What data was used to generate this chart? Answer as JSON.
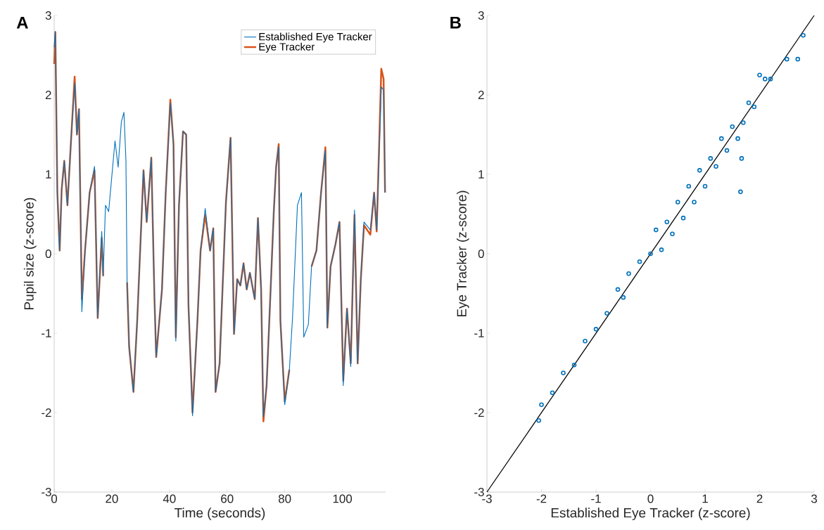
{
  "chart_data": [
    {
      "type": "line",
      "xlabel": "Time (seconds)",
      "ylabel": "Pupil size (z-score)",
      "annotations": [
        "A"
      ],
      "legend": "top right",
      "xlim": [
        0,
        115
      ],
      "ylim": [
        -3,
        3
      ],
      "xticks": [
        0,
        20,
        40,
        60,
        80,
        100
      ],
      "yticks": [
        -3,
        -2,
        -1,
        0,
        1,
        2,
        3
      ],
      "x": [
        0,
        0.4,
        1.1,
        1.9,
        2.6,
        3.5,
        4.6,
        5.9,
        7.1,
        7.9,
        8.6,
        9.6,
        10.7,
        12.3,
        14.0,
        15.1,
        16.5,
        17.0,
        17.8,
        18.9,
        21.1,
        22.2,
        23.3,
        24.2,
        24.9,
        25.3,
        26.0,
        27.5,
        28.8,
        31.0,
        32.1,
        33.7,
        34.8,
        35.4,
        37.4,
        38.7,
        40.3,
        41.4,
        42.2,
        43.3,
        44.7,
        45.8,
        46.6,
        48.0,
        49.7,
        50.8,
        52.4,
        54.1,
        55.2,
        56.0,
        57.4,
        59.6,
        61.2,
        62.4,
        63.5,
        64.6,
        65.7,
        66.8,
        67.9,
        69.6,
        70.7,
        71.8,
        72.6,
        73.7,
        75.1,
        76.2,
        77.0,
        77.9,
        78.5,
        80.0,
        81.6,
        82.7,
        84.4,
        85.8,
        86.6,
        88.2,
        89.3,
        91.0,
        92.6,
        94.1,
        94.8,
        95.9,
        97.6,
        99.0,
        100.3,
        101.6,
        102.9,
        104.2,
        105.3,
        106.4,
        107.5,
        109.7,
        111.0,
        111.9,
        113.5,
        114.3,
        114.8
      ],
      "series": [
        {
          "name": "Established Eye Tracker",
          "color": "#0072bd",
          "values": [
            2.6,
            2.8,
            0.77,
            0.04,
            0.81,
            1.17,
            0.61,
            1.46,
            2.15,
            1.5,
            1.82,
            -0.73,
            0.04,
            0.77,
            1.1,
            -0.81,
            0.28,
            -0.28,
            0.61,
            0.53,
            1.42,
            1.09,
            1.66,
            1.78,
            1.17,
            -0.36,
            -1.17,
            -1.74,
            -0.85,
            1.05,
            0.4,
            1.21,
            -0.57,
            -1.3,
            -0.45,
            0.77,
            1.9,
            1.38,
            -1.1,
            0.61,
            1.54,
            1.5,
            -0.65,
            -2.04,
            -0.85,
            0.04,
            0.57,
            0.04,
            0.32,
            -1.74,
            -1.38,
            0.65,
            1.46,
            -1.01,
            -0.32,
            -0.4,
            -0.12,
            -0.45,
            -0.24,
            -0.57,
            0.45,
            -0.45,
            -2.05,
            -1.66,
            -0.45,
            0.53,
            1.09,
            1.35,
            -0.85,
            -1.9,
            -1.46,
            -0.81,
            0.61,
            0.77,
            -1.05,
            -0.89,
            -0.16,
            0.04,
            0.77,
            1.3,
            -0.93,
            -0.16,
            0.12,
            0.4,
            -1.66,
            -0.69,
            -1.42,
            0.55,
            -1.38,
            -0.32,
            0.4,
            0.3,
            0.77,
            0.3,
            2.1,
            2.06,
            0.77
          ]
        },
        {
          "name": "Eye Tracker",
          "color": "#d95319",
          "values": [
            2.39,
            2.79,
            0.77,
            0.04,
            0.81,
            1.17,
            0.61,
            1.46,
            2.23,
            1.5,
            1.82,
            -0.57,
            0.04,
            0.77,
            1.05,
            -0.81,
            0.2,
            -0.28,
            null,
            null,
            null,
            null,
            null,
            null,
            null,
            -0.36,
            -1.17,
            -1.74,
            -0.85,
            1.05,
            0.4,
            1.21,
            -0.57,
            -1.3,
            -0.45,
            0.77,
            1.94,
            1.38,
            -1.05,
            0.61,
            1.54,
            1.5,
            -0.65,
            -2.0,
            -0.85,
            0.04,
            0.49,
            0.04,
            0.32,
            -1.74,
            -1.38,
            0.65,
            1.46,
            -1.01,
            -0.32,
            -0.4,
            -0.12,
            -0.45,
            -0.24,
            -0.57,
            0.45,
            -0.45,
            -2.11,
            -1.66,
            -0.45,
            0.53,
            1.09,
            1.38,
            -0.85,
            -1.86,
            -1.46,
            null,
            null,
            null,
            null,
            null,
            -0.16,
            0.04,
            0.77,
            1.34,
            -0.93,
            -0.16,
            0.12,
            0.4,
            -1.6,
            -0.69,
            -1.38,
            0.49,
            -1.38,
            -0.32,
            0.36,
            0.24,
            0.77,
            0.28,
            2.33,
            2.2,
            0.77
          ]
        }
      ]
    },
    {
      "type": "scatter",
      "xlabel": "Established Eye Tracker (z-score)",
      "ylabel": "Eye Tracker (z-score)",
      "annotations": [
        "B"
      ],
      "xlim": [
        -3,
        3
      ],
      "ylim": [
        -3,
        3
      ],
      "xticks": [
        -3,
        -2,
        -1,
        0,
        1,
        2,
        3
      ],
      "yticks": [
        -3,
        -2,
        -1,
        0,
        1,
        2,
        3
      ],
      "series": [
        {
          "color": "#0072bd",
          "marker": "circle",
          "x": [
            -2.05,
            -2.0,
            -1.8,
            -1.6,
            -1.4,
            -1.2,
            -1.0,
            -0.8,
            -0.6,
            -0.5,
            -0.4,
            -0.2,
            0,
            0.1,
            0.2,
            0.3,
            0.4,
            0.5,
            0.6,
            0.7,
            0.8,
            0.9,
            1.0,
            1.1,
            1.2,
            1.3,
            1.4,
            1.5,
            1.6,
            1.65,
            1.67,
            1.7,
            1.8,
            1.9,
            2.0,
            2.1,
            2.2,
            2.5,
            2.7,
            2.8
          ],
          "values": [
            -2.1,
            -1.9,
            -1.75,
            -1.5,
            -1.4,
            -1.1,
            -0.95,
            -0.75,
            -0.45,
            -0.55,
            -0.25,
            -0.1,
            0,
            0.3,
            0.05,
            0.4,
            0.25,
            0.65,
            0.45,
            0.85,
            0.65,
            1.05,
            0.85,
            1.2,
            1.1,
            1.45,
            1.3,
            1.6,
            1.45,
            0.78,
            1.2,
            1.65,
            1.9,
            1.85,
            2.25,
            2.2,
            2.2,
            2.45,
            2.45,
            2.75
          ]
        },
        {
          "type": "line",
          "color": "#000000",
          "x": [
            -3,
            3
          ],
          "values": [
            -3,
            3
          ]
        }
      ]
    }
  ]
}
